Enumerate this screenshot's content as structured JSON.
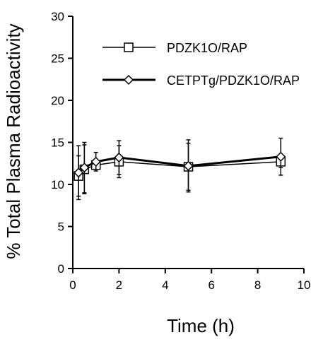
{
  "chart_data": {
    "type": "line",
    "xlabel": "Time (h)",
    "ylabel": "% Total Plasma Radioactivity",
    "xlim": [
      0,
      10
    ],
    "ylim": [
      0,
      30
    ],
    "xticks": [
      0,
      2,
      4,
      6,
      8,
      10
    ],
    "yticks": [
      0,
      5,
      10,
      15,
      20,
      25,
      30
    ],
    "xtick_labels": [
      "0",
      "2",
      "4",
      "6",
      "8",
      "10"
    ],
    "ytick_labels": [
      "0",
      "5",
      "10",
      "15",
      "20",
      "25",
      "30"
    ],
    "grid": false,
    "legend_position": "top-right",
    "series": [
      {
        "name": "PDZK1O/RAP",
        "marker": "square",
        "line_weight": "thin",
        "x": [
          0.25,
          0.5,
          1,
          2,
          5,
          9
        ],
        "y": [
          11.0,
          11.8,
          12.3,
          12.7,
          12.1,
          12.7
        ],
        "error": [
          2.4,
          2.9,
          0.5,
          1.9,
          2.8,
          0.7
        ]
      },
      {
        "name": "CETPTg/PDZK1O/RAP",
        "marker": "diamond",
        "line_weight": "thick",
        "x": [
          0.25,
          0.5,
          1,
          2,
          5,
          9
        ],
        "y": [
          11.4,
          12.0,
          12.7,
          13.2,
          12.2,
          13.3
        ],
        "error": [
          3.2,
          3.0,
          1.1,
          2.0,
          3.1,
          2.2
        ]
      }
    ]
  }
}
